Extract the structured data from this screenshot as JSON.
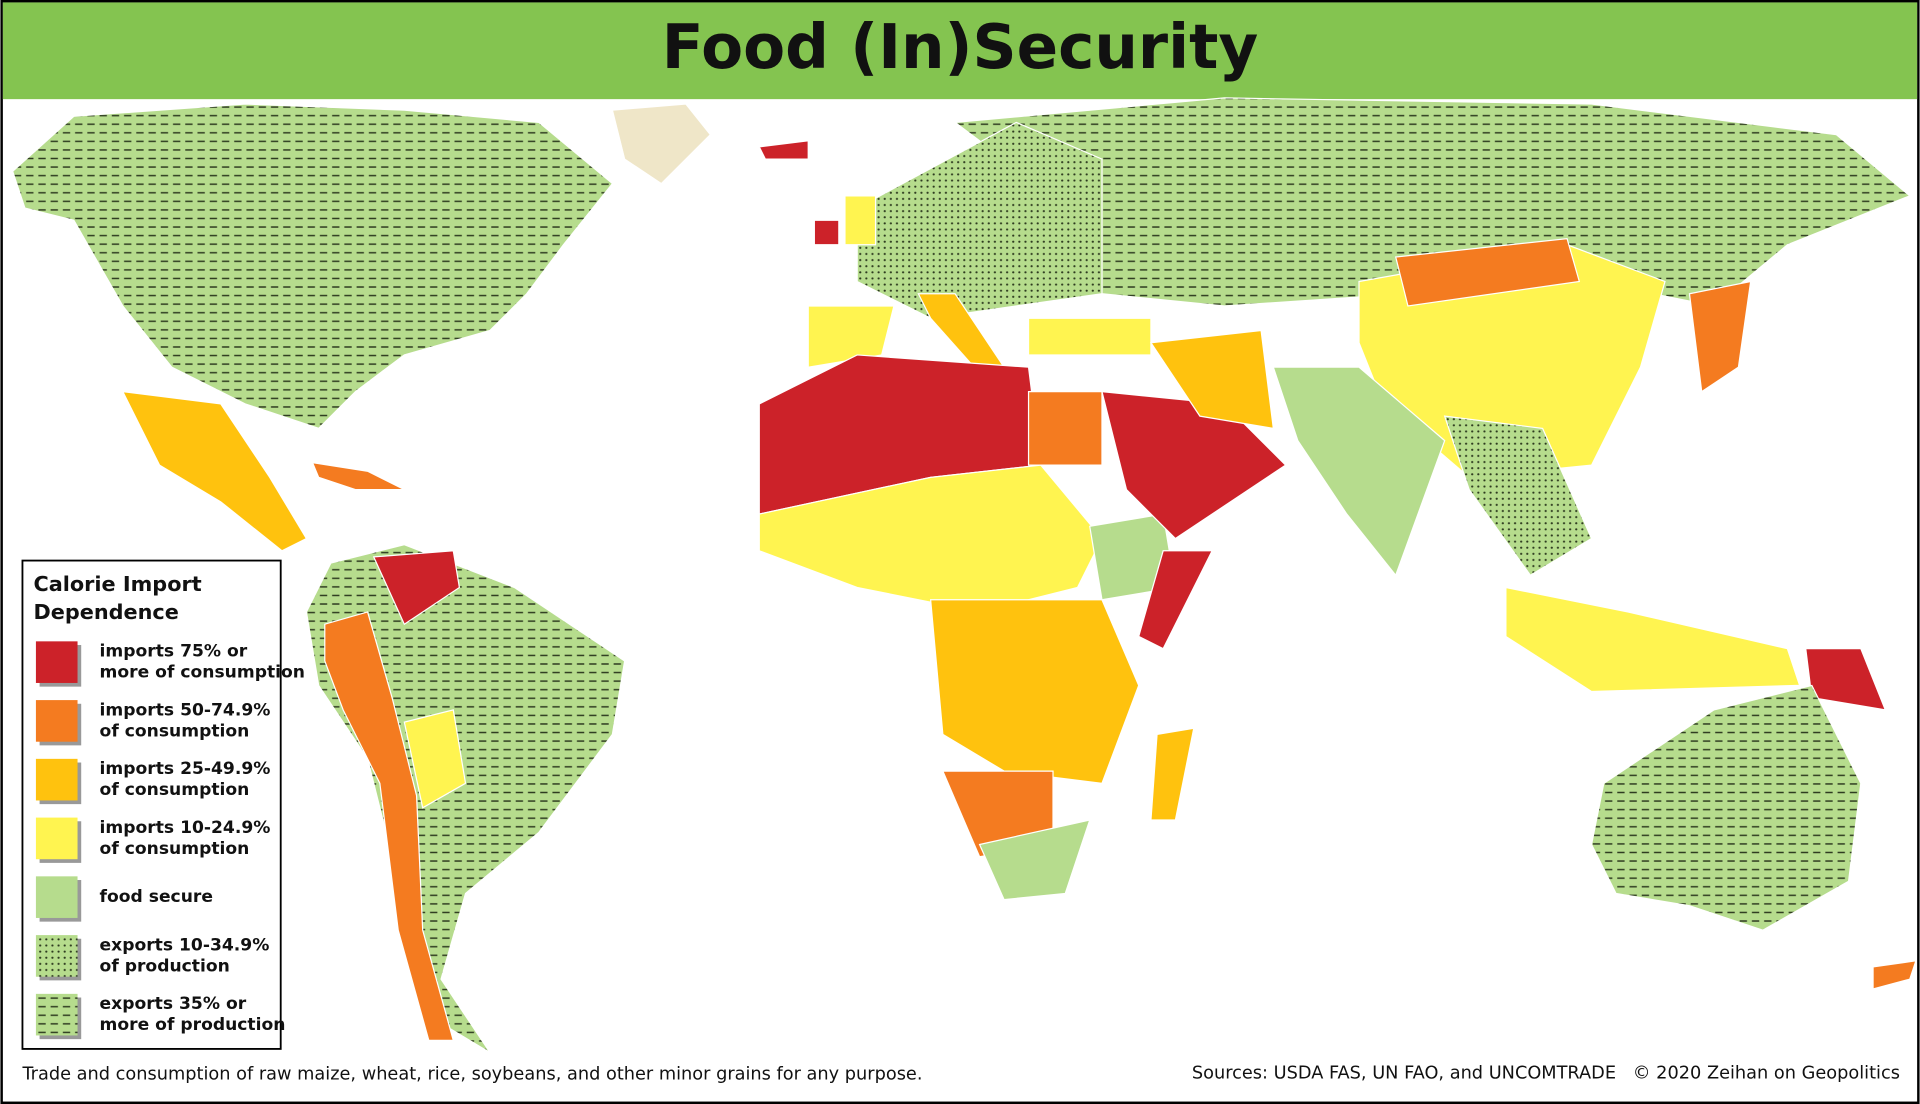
{
  "title": "Food (In)Security",
  "legend": {
    "title_lines": [
      "Calorie Import",
      "Dependence"
    ],
    "items": [
      {
        "swatch": "#cc2229",
        "pattern": "none",
        "lines": [
          "imports 75% or",
          "more of consumption"
        ]
      },
      {
        "swatch": "#f47b20",
        "pattern": "none",
        "lines": [
          "imports 50-74.9%",
          "of consumption"
        ]
      },
      {
        "swatch": "#ffc20e",
        "pattern": "none",
        "lines": [
          "imports 25-49.9%",
          "of consumption"
        ]
      },
      {
        "swatch": "#fff450",
        "pattern": "none",
        "lines": [
          "imports 10-24.9%",
          "of consumption"
        ]
      },
      {
        "swatch": "#b6dc8d",
        "pattern": "none",
        "lines": [
          "food secure"
        ]
      },
      {
        "swatch": "#b6dc8d",
        "pattern": "dots",
        "lines": [
          "exports 10-34.9%",
          "of production"
        ]
      },
      {
        "swatch": "#b6dc8d",
        "pattern": "dashes",
        "lines": [
          "exports 35% or",
          "more of production"
        ]
      }
    ]
  },
  "footnote": "Trade and consumption of raw maize, wheat, rice, soybeans, and other minor grains for any purpose.",
  "sources": "Sources: USDA FAS, UN FAO, and UNCOMTRADE",
  "copyright": "© 2020 Zeihan on Geopolitics"
}
